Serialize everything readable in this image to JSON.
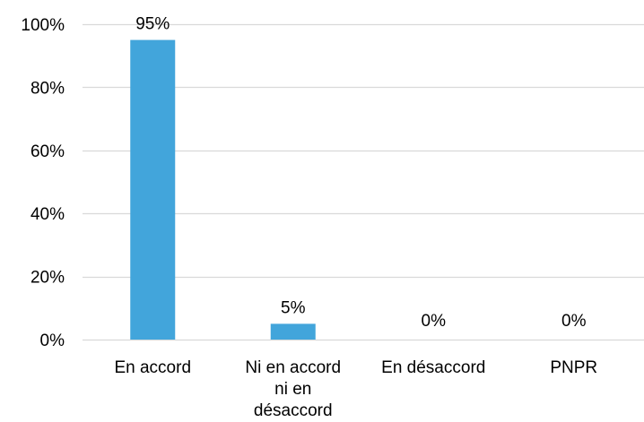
{
  "chart_data": {
    "type": "bar",
    "categories": [
      "En accord",
      "Ni en accord ni en désaccord",
      "En désaccord",
      "PNPR"
    ],
    "category_lines": [
      [
        "En accord"
      ],
      [
        "Ni en accord",
        "ni en",
        "désaccord"
      ],
      [
        "En désaccord"
      ],
      [
        "PNPR"
      ]
    ],
    "values": [
      95,
      5,
      0,
      0
    ],
    "data_labels": [
      "95%",
      "5%",
      "0%",
      "0%"
    ],
    "title": "",
    "xlabel": "",
    "ylabel": "",
    "ylim": [
      0,
      100
    ],
    "yticks": [
      0,
      20,
      40,
      60,
      80,
      100
    ],
    "ytick_labels": [
      "0%",
      "20%",
      "40%",
      "60%",
      "80%",
      "100%"
    ],
    "grid": true,
    "legend": "none",
    "bar_color": "#42A5DB",
    "grid_color": "#D9D9D9"
  }
}
